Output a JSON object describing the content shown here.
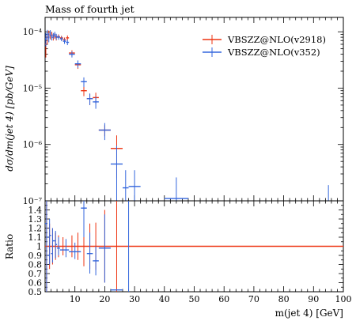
{
  "chart_data": {
    "type": "line",
    "title": "Mass of fourth jet",
    "xlabel": "m(jet 4) [GeV]",
    "ylabel": "dσ/dm(jet 4) [pb/GeV]",
    "ratio_ylabel": "Ratio",
    "xlim": [
      0,
      100
    ],
    "ylim": [
      1e-07,
      0.00018
    ],
    "yscale": "log",
    "ratio_ylim": [
      0.5,
      1.5
    ],
    "x_ticks": [
      10,
      20,
      30,
      40,
      50,
      60,
      70,
      80,
      90,
      100
    ],
    "y_ticks": [
      {
        "value": 1e-07,
        "label": "10⁻⁷"
      },
      {
        "value": 1e-06,
        "label": "10⁻⁶"
      },
      {
        "value": 1e-05,
        "label": "10⁻⁵"
      },
      {
        "value": 0.0001,
        "label": "10⁻⁴"
      }
    ],
    "ratio_ticks": [
      0.5,
      0.6,
      0.7,
      0.8,
      0.9,
      1,
      1.1,
      1.2,
      1.3,
      1.4
    ],
    "ratio_tick_labels": [
      "0.5",
      "0.6",
      "0.7",
      "0.8",
      "0.9",
      "1",
      "1.1",
      "1.2",
      "1.3",
      "1.4"
    ],
    "legend_position": "top-right",
    "series": [
      {
        "name": "VBSZZ@NLO(v2918)",
        "color": "#ee3311",
        "bins": [
          {
            "x0": 0,
            "x1": 0.5,
            "y": 6e-05,
            "err": 2.5e-05
          },
          {
            "x0": 0.5,
            "x1": 1,
            "y": 8e-05,
            "err": 2e-05
          },
          {
            "x0": 1,
            "x1": 1.5,
            "y": 9e-05,
            "err": 1.5e-05
          },
          {
            "x0": 1.5,
            "x1": 2,
            "y": 8.5e-05,
            "err": 1.2e-05
          },
          {
            "x0": 2,
            "x1": 2.5,
            "y": 8.8e-05,
            "err": 1.2e-05
          },
          {
            "x0": 2.5,
            "x1": 3,
            "y": 8e-05,
            "err": 1e-05
          },
          {
            "x0": 3,
            "x1": 3.5,
            "y": 8.5e-05,
            "err": 1e-05
          },
          {
            "x0": 3.5,
            "x1": 4,
            "y": 8e-05,
            "err": 1e-05
          },
          {
            "x0": 4,
            "x1": 5,
            "y": 8.2e-05,
            "err": 8e-06
          },
          {
            "x0": 5,
            "x1": 6,
            "y": 7.8e-05,
            "err": 7e-06
          },
          {
            "x0": 6,
            "x1": 7,
            "y": 7.2e-05,
            "err": 7e-06
          },
          {
            "x0": 7,
            "x1": 8,
            "y": 7.8e-05,
            "err": 8e-06
          },
          {
            "x0": 8,
            "x1": 10,
            "y": 4.2e-05,
            "err": 5e-06
          },
          {
            "x0": 10,
            "x1": 12,
            "y": 2.6e-05,
            "err": 4e-06
          },
          {
            "x0": 12,
            "x1": 14,
            "y": 9e-06,
            "err": 1.8e-06
          },
          {
            "x0": 14,
            "x1": 16,
            "y": 6.5e-06,
            "err": 1.5e-06
          },
          {
            "x0": 16,
            "x1": 18,
            "y": 6.8e-06,
            "err": 1.5e-06
          },
          {
            "x0": 18,
            "x1": 22,
            "y": 1.8e-06,
            "err": 4e-07
          },
          {
            "x0": 22,
            "x1": 26,
            "y": 8.5e-07,
            "err": 6e-07
          }
        ]
      },
      {
        "name": "VBSZZ@NLO(v352)",
        "color": "#3366dd",
        "bins": [
          {
            "x0": 0,
            "x1": 0.5,
            "y": 7.5e-05,
            "err": 2e-05
          },
          {
            "x0": 0.5,
            "x1": 1,
            "y": 9e-05,
            "err": 1.8e-05
          },
          {
            "x0": 1,
            "x1": 1.5,
            "y": 8e-05,
            "err": 1.5e-05
          },
          {
            "x0": 1.5,
            "x1": 2,
            "y": 9.5e-05,
            "err": 1.2e-05
          },
          {
            "x0": 2,
            "x1": 2.5,
            "y": 8e-05,
            "err": 1e-05
          },
          {
            "x0": 2.5,
            "x1": 3,
            "y": 8.5e-05,
            "err": 1e-05
          },
          {
            "x0": 3,
            "x1": 3.5,
            "y": 9e-05,
            "err": 1e-05
          },
          {
            "x0": 3.5,
            "x1": 4,
            "y": 8.2e-05,
            "err": 1e-05
          },
          {
            "x0": 4,
            "x1": 5,
            "y": 8e-05,
            "err": 8e-06
          },
          {
            "x0": 5,
            "x1": 6,
            "y": 7.5e-05,
            "err": 7e-06
          },
          {
            "x0": 6,
            "x1": 7,
            "y": 6.8e-05,
            "err": 7e-06
          },
          {
            "x0": 7,
            "x1": 8,
            "y": 6.5e-05,
            "err": 7e-06
          },
          {
            "x0": 8,
            "x1": 10,
            "y": 4e-05,
            "err": 5e-06
          },
          {
            "x0": 10,
            "x1": 12,
            "y": 2.7e-05,
            "err": 4e-06
          },
          {
            "x0": 12,
            "x1": 14,
            "y": 1.3e-05,
            "err": 2.5e-06
          },
          {
            "x0": 14,
            "x1": 16,
            "y": 6.5e-06,
            "err": 1.5e-06
          },
          {
            "x0": 16,
            "x1": 18,
            "y": 5.7e-06,
            "err": 1.4e-06
          },
          {
            "x0": 18,
            "x1": 22,
            "y": 1.8e-06,
            "err": 6e-07
          },
          {
            "x0": 22,
            "x1": 26,
            "y": 4.5e-07,
            "err": 5e-07
          },
          {
            "x0": 26,
            "x1": 28,
            "y": 1.7e-07,
            "err": 1.8e-07
          },
          {
            "x0": 28,
            "x1": 32,
            "y": 1.8e-07,
            "err": 1.7e-07
          },
          {
            "x0": 40,
            "x1": 48,
            "y": 1.1e-07,
            "err": 1.5e-07
          },
          {
            "x0": 90,
            "x1": 100,
            "y": 9e-08,
            "err": 1e-07
          }
        ]
      }
    ],
    "ratio_series": [
      {
        "name": "VBSZZ@NLO(v2918)",
        "color": "#ee3311",
        "bins": [
          {
            "x0": 0,
            "x1": 100,
            "y": 1.0,
            "err": 0
          }
        ],
        "errors": [
          {
            "x": 0.5,
            "lo": 0.5,
            "hi": 1.5
          },
          {
            "x": 1.5,
            "lo": 0.75,
            "hi": 1.25
          },
          {
            "x": 2.5,
            "lo": 0.8,
            "hi": 1.2
          },
          {
            "x": 3.5,
            "lo": 0.85,
            "hi": 1.15
          },
          {
            "x": 4.5,
            "lo": 0.88,
            "hi": 1.12
          },
          {
            "x": 6,
            "lo": 0.9,
            "hi": 1.1
          },
          {
            "x": 9,
            "lo": 0.88,
            "hi": 1.12
          },
          {
            "x": 11,
            "lo": 0.85,
            "hi": 1.15
          },
          {
            "x": 13,
            "lo": 0.78,
            "hi": 1.22
          },
          {
            "x": 15,
            "lo": 0.75,
            "hi": 1.25
          },
          {
            "x": 17,
            "lo": 0.74,
            "hi": 1.26
          },
          {
            "x": 20,
            "lo": 0.6,
            "hi": 1.4
          },
          {
            "x": 24,
            "lo": 0.5,
            "hi": 1.5
          }
        ]
      },
      {
        "name": "VBSZZ@NLO(v352)",
        "color": "#3366dd",
        "bins": [
          {
            "x0": 0,
            "x1": 0.5,
            "y": 1.25
          },
          {
            "x0": 0.5,
            "x1": 1,
            "y": 1.1
          },
          {
            "x0": 1,
            "x1": 1.5,
            "y": 0.9
          },
          {
            "x0": 1.5,
            "x1": 2,
            "y": 1.12
          },
          {
            "x0": 2,
            "x1": 2.5,
            "y": 0.92
          },
          {
            "x0": 2.5,
            "x1": 3,
            "y": 1.06
          },
          {
            "x0": 3,
            "x1": 3.5,
            "y": 1.06
          },
          {
            "x0": 3.5,
            "x1": 4,
            "y": 1.02
          },
          {
            "x0": 4,
            "x1": 5,
            "y": 0.98
          },
          {
            "x0": 5,
            "x1": 6,
            "y": 0.96
          },
          {
            "x0": 6,
            "x1": 8,
            "y": 0.96
          },
          {
            "x0": 8,
            "x1": 12,
            "y": 0.94
          },
          {
            "x0": 12,
            "x1": 14,
            "y": 1.42
          },
          {
            "x0": 14,
            "x1": 16,
            "y": 0.92
          },
          {
            "x0": 16,
            "x1": 18,
            "y": 0.84
          },
          {
            "x0": 18,
            "x1": 22,
            "y": 0.98
          },
          {
            "x0": 22,
            "x1": 26,
            "y": 0.52
          }
        ],
        "errors": [
          {
            "x": 0.5,
            "lo": 0.5,
            "hi": 1.5
          },
          {
            "x": 1.5,
            "lo": 0.8,
            "hi": 1.3
          },
          {
            "x": 2.5,
            "lo": 0.82,
            "hi": 1.2
          },
          {
            "x": 3.5,
            "lo": 0.87,
            "hi": 1.17
          },
          {
            "x": 4.5,
            "lo": 0.9,
            "hi": 1.1
          },
          {
            "x": 7,
            "lo": 0.88,
            "hi": 1.08
          },
          {
            "x": 10,
            "lo": 0.86,
            "hi": 1.04
          },
          {
            "x": 13,
            "lo": 1.1,
            "hi": 1.5
          },
          {
            "x": 15,
            "lo": 0.7,
            "hi": 1.15
          },
          {
            "x": 17,
            "lo": 0.68,
            "hi": 1.0
          },
          {
            "x": 20,
            "lo": 0.6,
            "hi": 1.35
          },
          {
            "x": 28,
            "lo": 0.5,
            "hi": 1.5
          }
        ]
      }
    ]
  }
}
